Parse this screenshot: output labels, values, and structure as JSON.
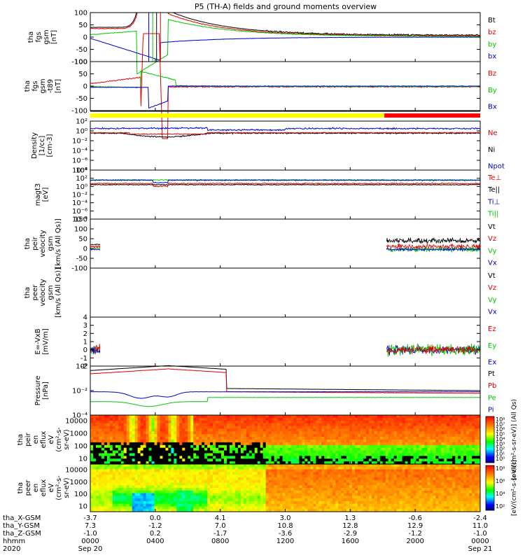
{
  "title": "P5 (TH-A) fields and ground moments overview",
  "colors": {
    "black": "#000000",
    "red": "#e00000",
    "green": "#00c800",
    "blue": "#0000d0",
    "yellow": "#ffff00",
    "barRed": "#ff0000"
  },
  "chart_data": [
    {
      "id": "fgs",
      "type": "line",
      "ylabel_lines": [
        "tha",
        "fgs",
        "gsm",
        "[nT]"
      ],
      "ylim": [
        -100,
        100
      ],
      "yticks": [
        "100",
        "50",
        "0",
        "-50",
        "-100"
      ],
      "legend": [
        {
          "name": "Bt",
          "color": "black"
        },
        {
          "name": "bz",
          "color": "red"
        },
        {
          "name": "by",
          "color": "green"
        },
        {
          "name": "bx",
          "color": "blue"
        }
      ]
    },
    {
      "id": "fgs-dip",
      "type": "line",
      "ylabel_lines": [
        "tha",
        "fgs",
        "gsm",
        "-t89",
        "[nT]"
      ],
      "ylim": [
        -100,
        100
      ],
      "yticks": [
        "100",
        "50",
        "0",
        "-50",
        "-100"
      ],
      "legend": [
        {
          "name": "Bz",
          "color": "red"
        },
        {
          "name": "By",
          "color": "green"
        },
        {
          "name": "Bx",
          "color": "blue"
        }
      ]
    },
    {
      "id": "density",
      "type": "line",
      "scale": "log",
      "ylabel_lines": [
        "Density",
        "[1/cc]",
        "[cm-3]"
      ],
      "yticks": [
        "10²",
        "10⁰",
        "10⁻²",
        "10⁻⁴",
        "10⁻⁶",
        "10⁻⁸"
      ],
      "legend": [
        {
          "name": "Ne",
          "color": "red"
        },
        {
          "name": "Ni",
          "color": "black"
        },
        {
          "name": "Npot",
          "color": "blue"
        }
      ]
    },
    {
      "id": "temperature",
      "type": "line",
      "scale": "log",
      "ylabel_lines": [
        "magt3",
        "[eV]"
      ],
      "yticks": [
        "10⁴",
        "10²",
        "10⁰",
        "10⁻²",
        "10⁻⁴",
        "10⁻⁶",
        "10⁻⁸"
      ],
      "legend": [
        {
          "name": "Te⊥",
          "color": "red"
        },
        {
          "name": "Te||",
          "color": "black"
        },
        {
          "name": "Ti⊥",
          "color": "blue"
        },
        {
          "name": "Ti||",
          "color": "green"
        }
      ]
    },
    {
      "id": "peir-velocity",
      "type": "line",
      "ylabel_lines": [
        "tha",
        "peir",
        "velocity",
        "gsm",
        "[km/s (All Qs)]"
      ],
      "ylim": [
        -100,
        150
      ],
      "yticks": [
        "150",
        "100",
        "50",
        "0",
        "-50",
        "-100"
      ],
      "legend": [
        {
          "name": "Vt",
          "color": "black"
        },
        {
          "name": "Vz",
          "color": "red"
        },
        {
          "name": "Vy",
          "color": "green"
        },
        {
          "name": "Vx",
          "color": "blue"
        }
      ]
    },
    {
      "id": "peer-velocity",
      "type": "line",
      "ylabel_lines": [
        "tha",
        "peer",
        "velocity",
        "gsm",
        "[km/s (All Qs)]"
      ],
      "legend": [
        {
          "name": "Vt",
          "color": "black"
        },
        {
          "name": "Vz",
          "color": "red"
        },
        {
          "name": "Vy",
          "color": "green"
        },
        {
          "name": "Vx",
          "color": "blue"
        }
      ]
    },
    {
      "id": "exb",
      "type": "line",
      "ylabel_lines": [
        "E=-VxB",
        "[mV/m]"
      ],
      "ylim": [
        -2,
        4
      ],
      "yticks": [
        "4",
        "3",
        "2",
        "1",
        "0",
        "-1",
        "-2"
      ],
      "legend": [
        {
          "name": "Ez",
          "color": "red"
        },
        {
          "name": "Ey",
          "color": "green"
        },
        {
          "name": "Ex",
          "color": "blue"
        }
      ]
    },
    {
      "id": "pressure",
      "type": "line",
      "scale": "log",
      "ylabel_lines": [
        "Pressure",
        "[nPa]"
      ],
      "yticks": [
        "10⁰",
        "10⁻²",
        "10⁻⁴"
      ],
      "legend": [
        {
          "name": "Pt",
          "color": "black"
        },
        {
          "name": "Pb",
          "color": "red"
        },
        {
          "name": "Pe",
          "color": "green"
        },
        {
          "name": "Pi",
          "color": "blue"
        }
      ]
    },
    {
      "id": "peir-spec",
      "type": "heatmap",
      "ylabel_lines": [
        "tha",
        "peir",
        "en",
        "eflux",
        "eV",
        "(cm²-s-",
        "sr-eV)"
      ],
      "yticks": [
        "10000",
        "1000",
        "100",
        "10"
      ],
      "colorbar_ticks": [
        "10⁸",
        "10⁷",
        "10⁶",
        "10⁵",
        "10⁴",
        "10³",
        "10²",
        "10¹",
        "10⁰"
      ],
      "colorbar_label": "[eV/(cm²-s-sr-eV)] (All Qs)"
    },
    {
      "id": "peer-spec",
      "type": "heatmap",
      "ylabel_lines": [
        "tha",
        "peer",
        "en",
        "eflux",
        "eV",
        "(cm²-s-",
        "sr-eV)"
      ],
      "yticks": [
        "10000",
        "1000",
        "100",
        "10"
      ],
      "colorbar_ticks": [
        "10⁸",
        "10⁶",
        "10⁴",
        "10²"
      ],
      "colorbar_label": "[eV/(cm²-s-sr-eV)]"
    }
  ],
  "xaxis": {
    "row_labels": [
      "tha_X-GSM",
      "tha_Y-GSM",
      "tha_Z-GSM",
      "hhmm",
      "2020"
    ],
    "ticks": [
      {
        "x": "-3.7",
        "y": "7.3",
        "z": "-1.0",
        "hhmm": "0000",
        "date": "Sep 20"
      },
      {
        "x": "0.0",
        "y": "-1.2",
        "z": "0.2",
        "hhmm": "0400",
        "date": ""
      },
      {
        "x": "4.1",
        "y": "7.0",
        "z": "-1.7",
        "hhmm": "0800",
        "date": ""
      },
      {
        "x": "3.0",
        "y": "10.8",
        "z": "-3.6",
        "hhmm": "1200",
        "date": ""
      },
      {
        "x": "1.3",
        "y": "12.8",
        "z": "-2.9",
        "hhmm": "1600",
        "date": ""
      },
      {
        "x": "-0.6",
        "y": "12.9",
        "z": "-1.2",
        "hhmm": "2000",
        "date": ""
      },
      {
        "x": "-2.4",
        "y": "11.0",
        "z": "-1.0",
        "hhmm": "0000",
        "date": "Sep 21"
      }
    ]
  }
}
